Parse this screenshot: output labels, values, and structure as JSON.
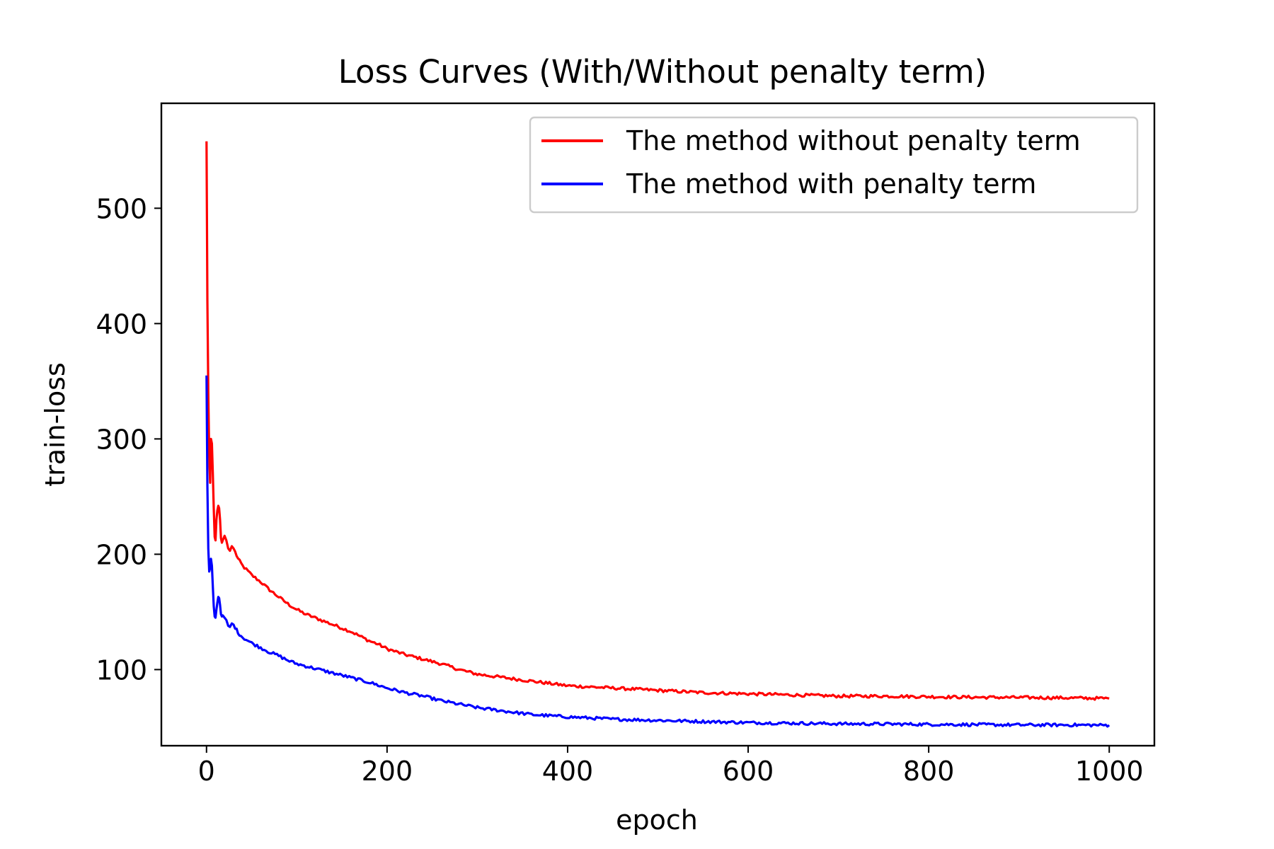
{
  "chart_data": {
    "type": "line",
    "title": "Loss Curves (With/Without penalty term)",
    "xlabel": "epoch",
    "ylabel": "train-loss",
    "xlim": [
      -50,
      1050
    ],
    "ylim": [
      34,
      591
    ],
    "xticks": [
      0,
      200,
      400,
      600,
      800,
      1000
    ],
    "yticks": [
      100,
      200,
      300,
      400,
      500
    ],
    "grid": false,
    "legend_position": "top-right",
    "series": [
      {
        "name": "The method without penalty term",
        "color": "#ff0000",
        "points": [
          [
            0,
            558
          ],
          [
            1,
            420
          ],
          [
            2,
            340
          ],
          [
            3,
            285
          ],
          [
            4,
            262
          ],
          [
            5,
            300
          ],
          [
            6,
            296
          ],
          [
            7,
            270
          ],
          [
            8,
            240
          ],
          [
            9,
            215
          ],
          [
            10,
            212
          ],
          [
            11,
            230
          ],
          [
            12,
            238
          ],
          [
            13,
            242
          ],
          [
            14,
            240
          ],
          [
            15,
            230
          ],
          [
            16,
            214
          ],
          [
            17,
            210
          ],
          [
            18,
            212
          ],
          [
            20,
            216
          ],
          [
            22,
            212
          ],
          [
            24,
            205
          ],
          [
            26,
            203
          ],
          [
            28,
            207
          ],
          [
            30,
            205
          ],
          [
            35,
            196
          ],
          [
            40,
            190
          ],
          [
            50,
            182
          ],
          [
            60,
            176
          ],
          [
            70,
            169
          ],
          [
            80,
            163
          ],
          [
            90,
            157
          ],
          [
            100,
            152
          ],
          [
            110,
            148
          ],
          [
            120,
            145
          ],
          [
            130,
            142
          ],
          [
            140,
            139
          ],
          [
            150,
            136
          ],
          [
            160,
            133
          ],
          [
            170,
            129
          ],
          [
            180,
            125
          ],
          [
            190,
            122
          ],
          [
            200,
            118
          ],
          [
            220,
            113
          ],
          [
            240,
            109
          ],
          [
            260,
            105
          ],
          [
            280,
            100
          ],
          [
            300,
            96
          ],
          [
            320,
            94
          ],
          [
            340,
            92
          ],
          [
            360,
            90
          ],
          [
            380,
            88
          ],
          [
            400,
            86
          ],
          [
            450,
            84
          ],
          [
            500,
            82
          ],
          [
            550,
            80
          ],
          [
            600,
            79
          ],
          [
            650,
            78
          ],
          [
            700,
            77
          ],
          [
            750,
            77
          ],
          [
            800,
            76.5
          ],
          [
            850,
            76
          ],
          [
            900,
            75.8
          ],
          [
            950,
            75.5
          ],
          [
            1000,
            75
          ]
        ]
      },
      {
        "name": "The method with penalty term",
        "color": "#0000ff",
        "points": [
          [
            0,
            355
          ],
          [
            1,
            260
          ],
          [
            2,
            205
          ],
          [
            3,
            185
          ],
          [
            4,
            188
          ],
          [
            5,
            196
          ],
          [
            6,
            190
          ],
          [
            7,
            172
          ],
          [
            8,
            155
          ],
          [
            9,
            146
          ],
          [
            10,
            145
          ],
          [
            11,
            152
          ],
          [
            12,
            158
          ],
          [
            13,
            163
          ],
          [
            14,
            162
          ],
          [
            15,
            156
          ],
          [
            16,
            148
          ],
          [
            17,
            146
          ],
          [
            18,
            147
          ],
          [
            20,
            145
          ],
          [
            22,
            143
          ],
          [
            24,
            138
          ],
          [
            26,
            137
          ],
          [
            28,
            140
          ],
          [
            30,
            139
          ],
          [
            35,
            132
          ],
          [
            40,
            128
          ],
          [
            50,
            123
          ],
          [
            60,
            119
          ],
          [
            70,
            115
          ],
          [
            80,
            112
          ],
          [
            90,
            108
          ],
          [
            100,
            105
          ],
          [
            120,
            101
          ],
          [
            140,
            97
          ],
          [
            160,
            93
          ],
          [
            180,
            89
          ],
          [
            200,
            84
          ],
          [
            220,
            80
          ],
          [
            240,
            77
          ],
          [
            260,
            73
          ],
          [
            280,
            70
          ],
          [
            300,
            67
          ],
          [
            320,
            65
          ],
          [
            340,
            63
          ],
          [
            360,
            61
          ],
          [
            380,
            60
          ],
          [
            400,
            59
          ],
          [
            450,
            57
          ],
          [
            500,
            56
          ],
          [
            550,
            55
          ],
          [
            600,
            54
          ],
          [
            650,
            53.5
          ],
          [
            700,
            53
          ],
          [
            750,
            52.8
          ],
          [
            800,
            52.5
          ],
          [
            850,
            52.3
          ],
          [
            900,
            52
          ],
          [
            950,
            52
          ],
          [
            1000,
            51.8
          ]
        ]
      }
    ]
  }
}
